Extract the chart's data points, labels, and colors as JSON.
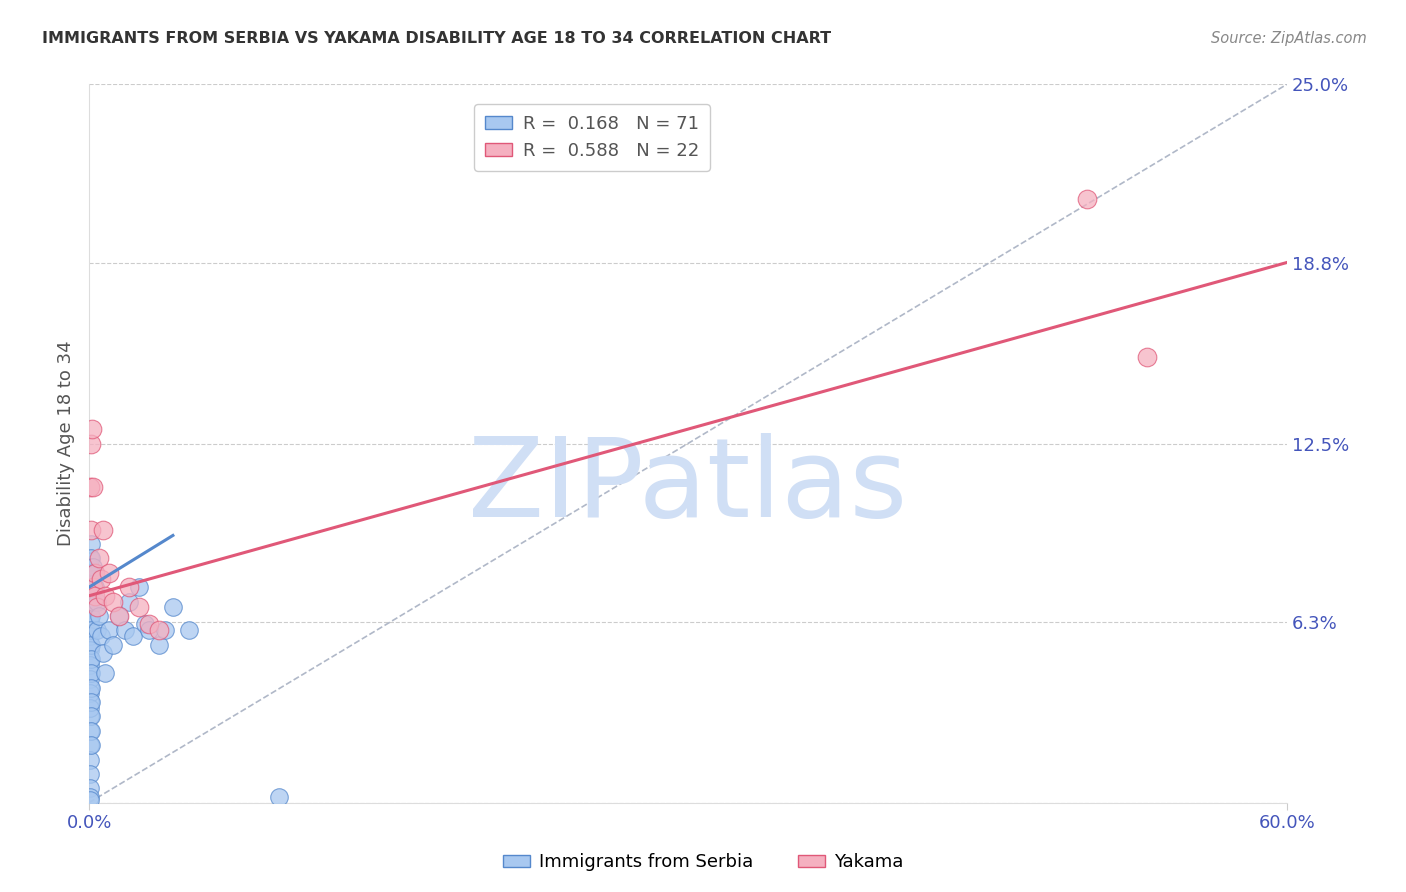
{
  "title": "IMMIGRANTS FROM SERBIA VS YAKAMA DISABILITY AGE 18 TO 34 CORRELATION CHART",
  "source": "Source: ZipAtlas.com",
  "ylabel": "Disability Age 18 to 34",
  "x_label_blue": "Immigrants from Serbia",
  "x_label_pink": "Yakama",
  "xlim": [
    0.0,
    0.6
  ],
  "ylim": [
    0.0,
    0.25
  ],
  "ytick_positions": [
    0.0,
    0.063,
    0.125,
    0.188,
    0.25
  ],
  "ytick_labels": [
    "",
    "6.3%",
    "12.5%",
    "18.8%",
    "25.0%"
  ],
  "grid_color": "#cccccc",
  "background_color": "#ffffff",
  "blue_color": "#a8c8f0",
  "blue_edge": "#5588cc",
  "pink_color": "#f5b0c0",
  "pink_edge": "#e05878",
  "R_blue": 0.168,
  "N_blue": 71,
  "R_pink": 0.588,
  "N_pink": 22,
  "axis_label_color": "#4455bb",
  "watermark_text": "ZIPatlas",
  "watermark_color": "#d0dff5",
  "blue_scatter_x": [
    0.0005,
    0.0005,
    0.0005,
    0.0005,
    0.0005,
    0.0005,
    0.0005,
    0.0005,
    0.0005,
    0.0005,
    0.0005,
    0.0005,
    0.0005,
    0.0005,
    0.0005,
    0.0005,
    0.0005,
    0.0005,
    0.0005,
    0.0005,
    0.0005,
    0.0005,
    0.0005,
    0.0005,
    0.0005,
    0.0005,
    0.0005,
    0.0005,
    0.0005,
    0.0005,
    0.001,
    0.001,
    0.001,
    0.001,
    0.001,
    0.001,
    0.001,
    0.001,
    0.001,
    0.001,
    0.001,
    0.001,
    0.001,
    0.001,
    0.001,
    0.0015,
    0.002,
    0.002,
    0.002,
    0.003,
    0.003,
    0.004,
    0.004,
    0.005,
    0.006,
    0.007,
    0.008,
    0.01,
    0.012,
    0.015,
    0.018,
    0.02,
    0.022,
    0.025,
    0.028,
    0.03,
    0.035,
    0.038,
    0.042,
    0.05,
    0.095
  ],
  "blue_scatter_y": [
    0.075,
    0.08,
    0.085,
    0.072,
    0.068,
    0.065,
    0.06,
    0.055,
    0.05,
    0.045,
    0.04,
    0.035,
    0.03,
    0.025,
    0.02,
    0.015,
    0.01,
    0.005,
    0.002,
    0.001,
    0.078,
    0.082,
    0.07,
    0.063,
    0.058,
    0.053,
    0.048,
    0.043,
    0.038,
    0.033,
    0.09,
    0.085,
    0.08,
    0.075,
    0.07,
    0.065,
    0.06,
    0.055,
    0.05,
    0.045,
    0.04,
    0.035,
    0.03,
    0.025,
    0.02,
    0.078,
    0.082,
    0.076,
    0.07,
    0.08,
    0.075,
    0.07,
    0.06,
    0.065,
    0.058,
    0.052,
    0.045,
    0.06,
    0.055,
    0.065,
    0.06,
    0.07,
    0.058,
    0.075,
    0.062,
    0.06,
    0.055,
    0.06,
    0.068,
    0.06,
    0.002
  ],
  "pink_scatter_x": [
    0.0005,
    0.001,
    0.001,
    0.0015,
    0.002,
    0.002,
    0.003,
    0.003,
    0.004,
    0.005,
    0.006,
    0.007,
    0.008,
    0.01,
    0.012,
    0.015,
    0.02,
    0.025,
    0.03,
    0.035,
    0.5,
    0.53
  ],
  "pink_scatter_y": [
    0.11,
    0.125,
    0.095,
    0.13,
    0.11,
    0.075,
    0.08,
    0.072,
    0.068,
    0.085,
    0.078,
    0.095,
    0.072,
    0.08,
    0.07,
    0.065,
    0.075,
    0.068,
    0.062,
    0.06,
    0.21,
    0.155
  ],
  "blue_line_x": [
    0.0,
    0.042
  ],
  "blue_line_y": [
    0.075,
    0.093
  ],
  "pink_line_x": [
    0.0,
    0.6
  ],
  "pink_line_y": [
    0.072,
    0.188
  ],
  "diag_line_x": [
    0.0,
    0.6
  ],
  "diag_line_y": [
    0.0,
    0.25
  ]
}
